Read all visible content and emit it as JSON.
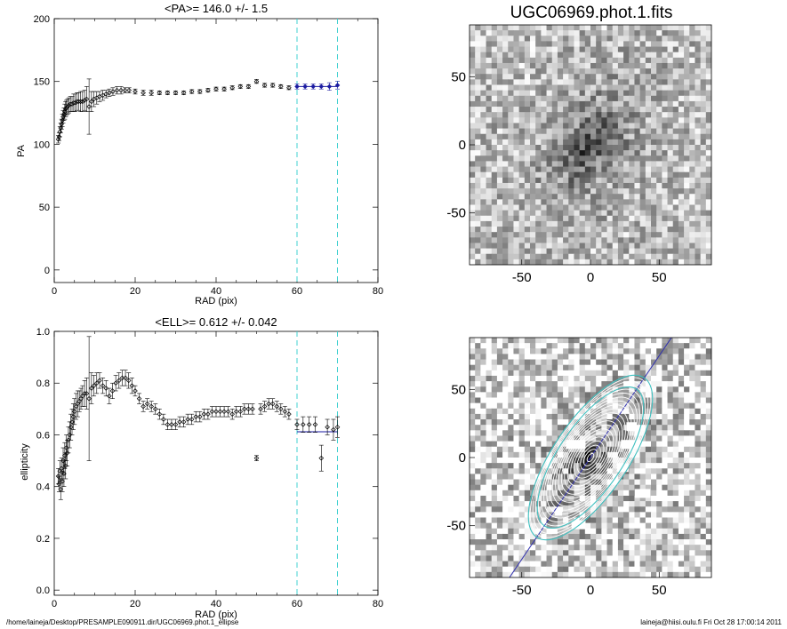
{
  "footer": {
    "left": "/home/laineja/Desktop/PRESAMPLE090911.dir/UGC06969.phot.1_ellipse",
    "right": "laineja@hiisi.oulu.fi  Fri Oct 28 17:00:14 2011"
  },
  "chart_data": [
    {
      "type": "scatter",
      "title": "<PA>= 146.0 +/-   1.5",
      "xlabel": "RAD (pix)",
      "ylabel": "PA",
      "xlim": [
        0,
        80
      ],
      "ylim": [
        -10,
        200
      ],
      "xticks": [
        0,
        20,
        40,
        60,
        80
      ],
      "yticks": [
        0,
        50,
        100,
        150,
        200
      ],
      "vlines": [
        60,
        70
      ],
      "fit_line": {
        "x": [
          60,
          70
        ],
        "y": 146.0
      },
      "points": [
        [
          1.0,
          104,
          3
        ],
        [
          1.2,
          106,
          3
        ],
        [
          1.4,
          110,
          4
        ],
        [
          1.6,
          113,
          4
        ],
        [
          1.8,
          116,
          4
        ],
        [
          2.0,
          119,
          5
        ],
        [
          2.2,
          122,
          5
        ],
        [
          2.4,
          124,
          5
        ],
        [
          2.6,
          126,
          6
        ],
        [
          2.8,
          128,
          6
        ],
        [
          3.0,
          129,
          6
        ],
        [
          3.3,
          130,
          6
        ],
        [
          3.6,
          131,
          6
        ],
        [
          4.0,
          132,
          6
        ],
        [
          4.4,
          132,
          6
        ],
        [
          4.8,
          133,
          7
        ],
        [
          5.2,
          133,
          7
        ],
        [
          5.6,
          134,
          7
        ],
        [
          6.0,
          134,
          7
        ],
        [
          6.5,
          134,
          8
        ],
        [
          7.0,
          134,
          8
        ],
        [
          7.5,
          135,
          8
        ],
        [
          8.0,
          136,
          10
        ],
        [
          8.6,
          130,
          22
        ],
        [
          9.2,
          134,
          8
        ],
        [
          9.8,
          136,
          6
        ],
        [
          10.5,
          137,
          5
        ],
        [
          11.2,
          138,
          4
        ],
        [
          12.0,
          139,
          4
        ],
        [
          12.8,
          140,
          3
        ],
        [
          13.6,
          141,
          3
        ],
        [
          14.5,
          142,
          3
        ],
        [
          15.5,
          143,
          3
        ],
        [
          16.5,
          143,
          3
        ],
        [
          17.5,
          143,
          2
        ],
        [
          18.5,
          143,
          2
        ],
        [
          20,
          142,
          2
        ],
        [
          22,
          141,
          2
        ],
        [
          24,
          141,
          2
        ],
        [
          26,
          141,
          1.5
        ],
        [
          28,
          141,
          1.5
        ],
        [
          30,
          141,
          1.5
        ],
        [
          32,
          141,
          1.5
        ],
        [
          34,
          142,
          1.5
        ],
        [
          36,
          142,
          1.5
        ],
        [
          38,
          143,
          1.5
        ],
        [
          40,
          144,
          1.5
        ],
        [
          42,
          144,
          1.5
        ],
        [
          44,
          145,
          1.5
        ],
        [
          46,
          146,
          1.5
        ],
        [
          48,
          146,
          1.5
        ],
        [
          50,
          150,
          1.5
        ],
        [
          52,
          147,
          1.5
        ],
        [
          54,
          147,
          1.5
        ],
        [
          56,
          146,
          1.5
        ],
        [
          58,
          145,
          1.5
        ],
        [
          60,
          146,
          2
        ],
        [
          62,
          146,
          2
        ],
        [
          64,
          146,
          2
        ],
        [
          66,
          146,
          2
        ],
        [
          68,
          146,
          3
        ],
        [
          70,
          147,
          3
        ]
      ]
    },
    {
      "type": "scatter",
      "title": "<ELL>= 0.612 +/-  0.042",
      "xlabel": "RAD (pix)",
      "ylabel": "ellipticity",
      "xlim": [
        0,
        80
      ],
      "ylim": [
        -0.02,
        1.0
      ],
      "xticks": [
        0,
        20,
        40,
        60,
        80
      ],
      "yticks": [
        0.0,
        0.2,
        0.4,
        0.6,
        0.8,
        1.0
      ],
      "vlines": [
        60,
        70
      ],
      "fit_line": {
        "x": [
          60,
          70
        ],
        "y": 0.612
      },
      "points": [
        [
          1.0,
          0.44,
          0.03
        ],
        [
          1.2,
          0.41,
          0.03
        ],
        [
          1.4,
          0.46,
          0.04
        ],
        [
          1.6,
          0.39,
          0.04
        ],
        [
          1.8,
          0.47,
          0.04
        ],
        [
          2.0,
          0.42,
          0.04
        ],
        [
          2.2,
          0.5,
          0.05
        ],
        [
          2.4,
          0.45,
          0.05
        ],
        [
          2.6,
          0.52,
          0.05
        ],
        [
          2.8,
          0.48,
          0.05
        ],
        [
          3.0,
          0.55,
          0.05
        ],
        [
          3.2,
          0.53,
          0.05
        ],
        [
          3.5,
          0.58,
          0.05
        ],
        [
          3.8,
          0.6,
          0.05
        ],
        [
          4.1,
          0.63,
          0.05
        ],
        [
          4.4,
          0.65,
          0.05
        ],
        [
          4.7,
          0.67,
          0.05
        ],
        [
          5.0,
          0.69,
          0.05
        ],
        [
          5.4,
          0.71,
          0.05
        ],
        [
          5.8,
          0.72,
          0.05
        ],
        [
          6.2,
          0.73,
          0.04
        ],
        [
          6.6,
          0.74,
          0.04
        ],
        [
          7.0,
          0.75,
          0.04
        ],
        [
          7.5,
          0.76,
          0.05
        ],
        [
          8.0,
          0.76,
          0.06
        ],
        [
          8.6,
          0.74,
          0.24
        ],
        [
          9.2,
          0.78,
          0.06
        ],
        [
          9.8,
          0.79,
          0.04
        ],
        [
          10.5,
          0.8,
          0.04
        ],
        [
          11.2,
          0.81,
          0.03
        ],
        [
          12,
          0.79,
          0.03
        ],
        [
          12.8,
          0.78,
          0.03
        ],
        [
          13.6,
          0.75,
          0.03
        ],
        [
          14.4,
          0.77,
          0.03
        ],
        [
          15.2,
          0.8,
          0.03
        ],
        [
          16,
          0.81,
          0.03
        ],
        [
          16.8,
          0.82,
          0.03
        ],
        [
          17.6,
          0.82,
          0.03
        ],
        [
          18.4,
          0.81,
          0.03
        ],
        [
          19.2,
          0.79,
          0.03
        ],
        [
          20,
          0.77,
          0.02
        ],
        [
          21,
          0.74,
          0.02
        ],
        [
          22,
          0.71,
          0.02
        ],
        [
          23,
          0.72,
          0.02
        ],
        [
          24,
          0.71,
          0.02
        ],
        [
          25,
          0.7,
          0.02
        ],
        [
          26,
          0.68,
          0.02
        ],
        [
          27,
          0.66,
          0.02
        ],
        [
          28,
          0.64,
          0.02
        ],
        [
          29,
          0.64,
          0.02
        ],
        [
          30,
          0.64,
          0.02
        ],
        [
          31,
          0.65,
          0.02
        ],
        [
          32,
          0.65,
          0.02
        ],
        [
          33,
          0.66,
          0.02
        ],
        [
          34,
          0.66,
          0.02
        ],
        [
          35,
          0.67,
          0.02
        ],
        [
          36,
          0.67,
          0.02
        ],
        [
          37,
          0.68,
          0.02
        ],
        [
          38,
          0.68,
          0.02
        ],
        [
          39,
          0.69,
          0.02
        ],
        [
          40,
          0.69,
          0.02
        ],
        [
          41,
          0.69,
          0.02
        ],
        [
          42,
          0.69,
          0.02
        ],
        [
          43,
          0.69,
          0.02
        ],
        [
          44,
          0.68,
          0.02
        ],
        [
          45,
          0.69,
          0.02
        ],
        [
          46,
          0.69,
          0.02
        ],
        [
          47,
          0.7,
          0.02
        ],
        [
          48,
          0.7,
          0.02
        ],
        [
          49,
          0.7,
          0.02
        ],
        [
          50,
          0.51,
          0.01
        ],
        [
          51,
          0.7,
          0.02
        ],
        [
          52,
          0.71,
          0.02
        ],
        [
          53,
          0.72,
          0.02
        ],
        [
          54,
          0.72,
          0.02
        ],
        [
          55,
          0.71,
          0.02
        ],
        [
          56,
          0.7,
          0.02
        ],
        [
          57,
          0.69,
          0.02
        ],
        [
          58,
          0.68,
          0.02
        ],
        [
          60,
          0.64,
          0.02
        ],
        [
          61.5,
          0.64,
          0.03
        ],
        [
          63,
          0.64,
          0.03
        ],
        [
          64.5,
          0.64,
          0.03
        ],
        [
          66,
          0.51,
          0.05
        ],
        [
          67.5,
          0.63,
          0.03
        ],
        [
          69,
          0.62,
          0.04
        ],
        [
          70,
          0.63,
          0.04
        ]
      ]
    },
    {
      "type": "heatmap",
      "title": "UGC06969.phot.1.fits",
      "xlim": [
        -88,
        88
      ],
      "ylim": [
        -88,
        88
      ],
      "xticks": [
        -50,
        0,
        50
      ],
      "yticks": [
        -50,
        0,
        50
      ],
      "colormap": "grayscale",
      "overlay": "none"
    },
    {
      "type": "heatmap",
      "title": "",
      "xlim": [
        -88,
        88
      ],
      "ylim": [
        -88,
        88
      ],
      "xticks": [
        -50,
        0,
        50
      ],
      "yticks": [
        -50,
        0,
        50
      ],
      "colormap": "grayscale",
      "overlay": "ellipse isophotes with major-axis line",
      "ellipse_pa_deg": 146.0,
      "ellipse_ellipticity": 0.612,
      "overlay_colors": {
        "contours": "#ffffff",
        "fit_ellipses": "#40c0c0",
        "axis_line": "#3030b0"
      }
    }
  ],
  "colors": {
    "points": "#000000",
    "vlines": "#40d0d0",
    "fit_line": "#1a1aa0",
    "fit_points": "#1a1aa0"
  }
}
